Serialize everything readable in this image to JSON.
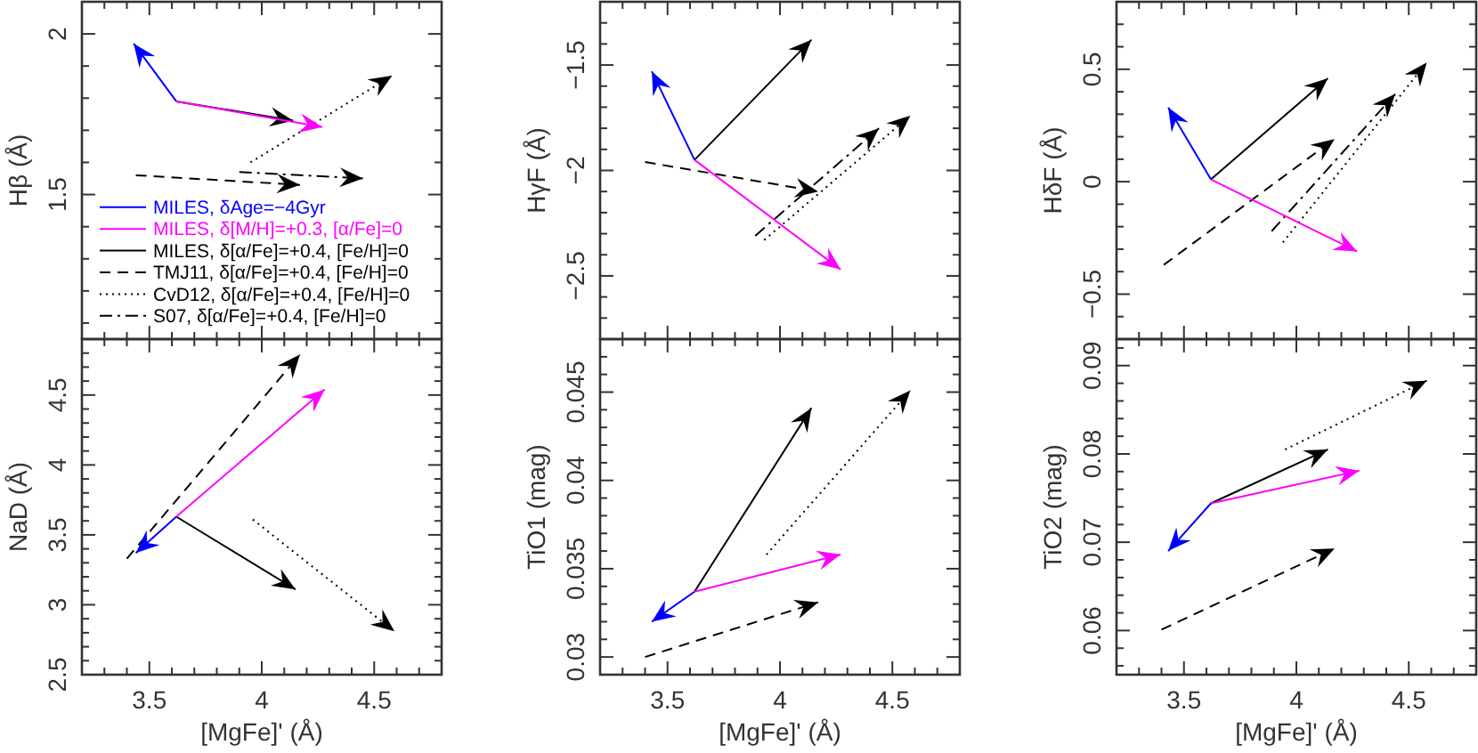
{
  "chart_data": [
    {
      "type": "line",
      "ylabel": "Hβ (Å)",
      "xlim": [
        3.2,
        4.8
      ],
      "ylim": [
        1.05,
        2.1
      ],
      "tick_labels": "y",
      "legend": "bottom left",
      "xticks": [
        {
          "value": 3.3,
          "label": null
        },
        {
          "value": 3.4,
          "label": null
        },
        3.5,
        {
          "value": 3.6,
          "label": null
        },
        {
          "value": 3.7,
          "label": null
        },
        {
          "value": 3.8,
          "label": null
        },
        {
          "value": 3.9,
          "label": null
        },
        4,
        {
          "value": 4.1,
          "label": null
        },
        {
          "value": 4.2,
          "label": null
        },
        {
          "value": 4.3,
          "label": null
        },
        {
          "value": 4.4,
          "label": null
        },
        4.5,
        {
          "value": 4.6,
          "label": null
        },
        {
          "value": 4.7,
          "label": null
        }
      ],
      "yticks": [
        {
          "value": 1.1,
          "label": null
        },
        {
          "value": 1.2,
          "label": null
        },
        {
          "value": 1.3,
          "label": null
        },
        {
          "value": 1.4,
          "label": null
        },
        1.5,
        {
          "value": 1.6,
          "label": null
        },
        {
          "value": 1.7,
          "label": null
        },
        {
          "value": 1.8,
          "label": null
        },
        {
          "value": 1.9,
          "label": null
        },
        2
      ],
      "series": [
        {
          "name": "MILES, δAge=−4Gyr",
          "color": "#0000ff",
          "line_style": "solid",
          "x": [
            3.62,
            3.43
          ],
          "values": [
            1.79,
            1.97
          ]
        },
        {
          "name": "MILES, δ[M/H]=+0.3, [α/Fe]=0",
          "color": "#ff00ff",
          "line_style": "solid",
          "x": [
            3.62,
            4.27
          ],
          "values": [
            1.79,
            1.71
          ]
        },
        {
          "name": "MILES, δ[α/Fe]=+0.4, [Fe/H]=0",
          "color": "#000000",
          "line_style": "solid",
          "x": [
            3.62,
            4.14
          ],
          "values": [
            1.79,
            1.73
          ]
        },
        {
          "name": "TMJ11, δ[α/Fe]=+0.4, [Fe/H]=0",
          "color": "#000000",
          "line_style": "dashed",
          "x": [
            3.44,
            4.17
          ],
          "values": [
            1.56,
            1.53
          ]
        },
        {
          "name": "CvD12, δ[α/Fe]=+0.4, [Fe/H]=0",
          "color": "#000000",
          "line_style": "dotted",
          "x": [
            3.95,
            4.58
          ],
          "values": [
            1.6,
            1.87
          ]
        },
        {
          "name": "S07, δ[α/Fe]=+0.4, [Fe/H]=0",
          "color": "#000000",
          "line_style": "dashdot",
          "x": [
            3.9,
            4.45
          ],
          "values": [
            1.57,
            1.55
          ]
        }
      ]
    },
    {
      "type": "line",
      "ylabel": "HγF (Å)",
      "xlim": [
        3.2,
        4.8
      ],
      "ylim": [
        -2.8,
        -1.2
      ],
      "tick_labels": "y",
      "xticks": [
        {
          "value": 3.3,
          "label": null
        },
        {
          "value": 3.4,
          "label": null
        },
        3.5,
        {
          "value": 3.6,
          "label": null
        },
        {
          "value": 3.7,
          "label": null
        },
        {
          "value": 3.8,
          "label": null
        },
        {
          "value": 3.9,
          "label": null
        },
        4,
        {
          "value": 4.1,
          "label": null
        },
        {
          "value": 4.2,
          "label": null
        },
        {
          "value": 4.3,
          "label": null
        },
        {
          "value": 4.4,
          "label": null
        },
        4.5,
        {
          "value": 4.6,
          "label": null
        },
        {
          "value": 4.7,
          "label": null
        }
      ],
      "yticks": [
        {
          "value": -2.7,
          "label": null
        },
        {
          "value": -2.6,
          "label": null
        },
        -2.5,
        {
          "value": -2.4,
          "label": null
        },
        {
          "value": -2.3,
          "label": null
        },
        {
          "value": -2.2,
          "label": null
        },
        {
          "value": -2.1,
          "label": null
        },
        -2,
        {
          "value": -1.9,
          "label": null
        },
        {
          "value": -1.8,
          "label": null
        },
        {
          "value": -1.7,
          "label": null
        },
        {
          "value": -1.6,
          "label": null
        },
        -1.5,
        {
          "value": -1.4,
          "label": null
        },
        {
          "value": -1.3,
          "label": null
        }
      ],
      "series": [
        {
          "color": "#0000ff",
          "line_style": "solid",
          "x": [
            3.62,
            3.43
          ],
          "values": [
            -1.95,
            -1.53
          ]
        },
        {
          "color": "#ff00ff",
          "line_style": "solid",
          "x": [
            3.62,
            4.27
          ],
          "values": [
            -1.95,
            -2.47
          ]
        },
        {
          "color": "#000000",
          "line_style": "solid",
          "x": [
            3.62,
            4.14
          ],
          "values": [
            -1.95,
            -1.38
          ]
        },
        {
          "color": "#000000",
          "line_style": "dashed",
          "x": [
            3.4,
            4.17
          ],
          "values": [
            -1.96,
            -2.1
          ]
        },
        {
          "color": "#000000",
          "line_style": "dotted",
          "x": [
            3.93,
            4.58
          ],
          "values": [
            -2.33,
            -1.74
          ]
        },
        {
          "color": "#000000",
          "line_style": "dashdot",
          "x": [
            3.89,
            4.44
          ],
          "values": [
            -2.31,
            -1.8
          ]
        }
      ]
    },
    {
      "type": "line",
      "ylabel": "HδF (Å)",
      "xlim": [
        3.2,
        4.8
      ],
      "ylim": [
        -0.7,
        0.8
      ],
      "tick_labels": "y",
      "xticks": [
        {
          "value": 3.3,
          "label": null
        },
        {
          "value": 3.4,
          "label": null
        },
        3.5,
        {
          "value": 3.6,
          "label": null
        },
        {
          "value": 3.7,
          "label": null
        },
        {
          "value": 3.8,
          "label": null
        },
        {
          "value": 3.9,
          "label": null
        },
        4,
        {
          "value": 4.1,
          "label": null
        },
        {
          "value": 4.2,
          "label": null
        },
        {
          "value": 4.3,
          "label": null
        },
        {
          "value": 4.4,
          "label": null
        },
        4.5,
        {
          "value": 4.6,
          "label": null
        },
        {
          "value": 4.7,
          "label": null
        }
      ],
      "yticks": [
        {
          "value": -0.6,
          "label": null
        },
        -0.5,
        {
          "value": -0.4,
          "label": null
        },
        {
          "value": -0.3,
          "label": null
        },
        {
          "value": -0.2,
          "label": null
        },
        {
          "value": -0.1,
          "label": null
        },
        0,
        {
          "value": 0.1,
          "label": null
        },
        {
          "value": 0.2,
          "label": null
        },
        {
          "value": 0.3,
          "label": null
        },
        {
          "value": 0.4,
          "label": null
        },
        0.5,
        {
          "value": 0.6,
          "label": null
        },
        {
          "value": 0.7,
          "label": null
        }
      ],
      "series": [
        {
          "color": "#0000ff",
          "line_style": "solid",
          "x": [
            3.62,
            3.43
          ],
          "values": [
            0.01,
            0.33
          ]
        },
        {
          "color": "#ff00ff",
          "line_style": "solid",
          "x": [
            3.62,
            4.27
          ],
          "values": [
            0.01,
            -0.31
          ]
        },
        {
          "color": "#000000",
          "line_style": "solid",
          "x": [
            3.62,
            4.14
          ],
          "values": [
            0.01,
            0.46
          ]
        },
        {
          "color": "#000000",
          "line_style": "dashed",
          "x": [
            3.41,
            4.17
          ],
          "values": [
            -0.37,
            0.19
          ]
        },
        {
          "color": "#000000",
          "line_style": "dotted",
          "x": [
            3.94,
            4.58
          ],
          "values": [
            -0.27,
            0.53
          ]
        },
        {
          "color": "#000000",
          "line_style": "dashdot",
          "x": [
            3.89,
            4.44
          ],
          "values": [
            -0.22,
            0.39
          ]
        }
      ]
    },
    {
      "type": "line",
      "xlabel": "[MgFe]' (Å)",
      "ylabel": "NaD (Å)",
      "xlim": [
        3.2,
        4.8
      ],
      "ylim": [
        2.5,
        4.9
      ],
      "xticks": [
        {
          "value": 3.3,
          "label": null
        },
        {
          "value": 3.4,
          "label": null
        },
        3.5,
        {
          "value": 3.6,
          "label": null
        },
        {
          "value": 3.7,
          "label": null
        },
        {
          "value": 3.8,
          "label": null
        },
        {
          "value": 3.9,
          "label": null
        },
        4,
        {
          "value": 4.1,
          "label": null
        },
        {
          "value": 4.2,
          "label": null
        },
        {
          "value": 4.3,
          "label": null
        },
        {
          "value": 4.4,
          "label": null
        },
        4.5,
        {
          "value": 4.6,
          "label": null
        },
        {
          "value": 4.7,
          "label": null
        }
      ],
      "yticks": [
        2.5,
        {
          "value": 2.6,
          "label": null
        },
        {
          "value": 2.7,
          "label": null
        },
        {
          "value": 2.8,
          "label": null
        },
        {
          "value": 2.9,
          "label": null
        },
        3,
        {
          "value": 3.1,
          "label": null
        },
        {
          "value": 3.2,
          "label": null
        },
        {
          "value": 3.3,
          "label": null
        },
        {
          "value": 3.4,
          "label": null
        },
        3.5,
        {
          "value": 3.6,
          "label": null
        },
        {
          "value": 3.7,
          "label": null
        },
        {
          "value": 3.8,
          "label": null
        },
        {
          "value": 3.9,
          "label": null
        },
        4,
        {
          "value": 4.1,
          "label": null
        },
        {
          "value": 4.2,
          "label": null
        },
        {
          "value": 4.3,
          "label": null
        },
        {
          "value": 4.4,
          "label": null
        },
        4.5,
        {
          "value": 4.6,
          "label": null
        },
        {
          "value": 4.7,
          "label": null
        },
        {
          "value": 4.8,
          "label": null
        }
      ],
      "series": [
        {
          "color": "#0000ff",
          "line_style": "solid",
          "x": [
            3.62,
            3.44
          ],
          "values": [
            3.63,
            3.37
          ]
        },
        {
          "color": "#ff00ff",
          "line_style": "solid",
          "x": [
            3.62,
            4.28
          ],
          "values": [
            3.63,
            4.54
          ]
        },
        {
          "color": "#000000",
          "line_style": "solid",
          "x": [
            3.62,
            4.15
          ],
          "values": [
            3.63,
            3.11
          ]
        },
        {
          "color": "#000000",
          "line_style": "dashed",
          "x": [
            3.4,
            4.17
          ],
          "values": [
            3.33,
            4.79
          ]
        },
        {
          "color": "#000000",
          "line_style": "dotted",
          "x": [
            3.96,
            4.59
          ],
          "values": [
            3.61,
            2.81
          ]
        }
      ]
    },
    {
      "type": "line",
      "xlabel": "[MgFe]' (Å)",
      "ylabel": "TiO1 (mag)",
      "xlim": [
        3.2,
        4.8
      ],
      "ylim": [
        0.029,
        0.048
      ],
      "xticks": [
        {
          "value": 3.3,
          "label": null
        },
        {
          "value": 3.4,
          "label": null
        },
        3.5,
        {
          "value": 3.6,
          "label": null
        },
        {
          "value": 3.7,
          "label": null
        },
        {
          "value": 3.8,
          "label": null
        },
        {
          "value": 3.9,
          "label": null
        },
        4,
        {
          "value": 4.1,
          "label": null
        },
        {
          "value": 4.2,
          "label": null
        },
        {
          "value": 4.3,
          "label": null
        },
        {
          "value": 4.4,
          "label": null
        },
        4.5,
        {
          "value": 4.6,
          "label": null
        },
        {
          "value": 4.7,
          "label": null
        }
      ],
      "yticks": [
        0.03,
        {
          "value": 0.031,
          "label": null
        },
        {
          "value": 0.032,
          "label": null
        },
        {
          "value": 0.033,
          "label": null
        },
        {
          "value": 0.034,
          "label": null
        },
        0.035,
        {
          "value": 0.036,
          "label": null
        },
        {
          "value": 0.037,
          "label": null
        },
        {
          "value": 0.038,
          "label": null
        },
        {
          "value": 0.039,
          "label": null
        },
        0.04,
        {
          "value": 0.041,
          "label": null
        },
        {
          "value": 0.042,
          "label": null
        },
        {
          "value": 0.043,
          "label": null
        },
        {
          "value": 0.044,
          "label": null
        },
        0.045,
        {
          "value": 0.046,
          "label": null
        },
        {
          "value": 0.047,
          "label": null
        }
      ],
      "series": [
        {
          "color": "#0000ff",
          "line_style": "solid",
          "x": [
            3.62,
            3.43
          ],
          "values": [
            0.0337,
            0.032
          ]
        },
        {
          "color": "#ff00ff",
          "line_style": "solid",
          "x": [
            3.62,
            4.27
          ],
          "values": [
            0.0337,
            0.0358
          ]
        },
        {
          "color": "#000000",
          "line_style": "solid",
          "x": [
            3.62,
            4.14
          ],
          "values": [
            0.0337,
            0.0441
          ]
        },
        {
          "color": "#000000",
          "line_style": "dashed",
          "x": [
            3.4,
            4.17
          ],
          "values": [
            0.03,
            0.0331
          ]
        },
        {
          "color": "#000000",
          "line_style": "dotted",
          "x": [
            3.94,
            4.58
          ],
          "values": [
            0.0358,
            0.0451
          ]
        }
      ]
    },
    {
      "type": "line",
      "xlabel": "[MgFe]' (Å)",
      "ylabel": "TiO2 (mag)",
      "xlim": [
        3.2,
        4.8
      ],
      "ylim": [
        0.055,
        0.093
      ],
      "xticks": [
        {
          "value": 3.3,
          "label": null
        },
        {
          "value": 3.4,
          "label": null
        },
        3.5,
        {
          "value": 3.6,
          "label": null
        },
        {
          "value": 3.7,
          "label": null
        },
        {
          "value": 3.8,
          "label": null
        },
        {
          "value": 3.9,
          "label": null
        },
        4,
        {
          "value": 4.1,
          "label": null
        },
        {
          "value": 4.2,
          "label": null
        },
        {
          "value": 4.3,
          "label": null
        },
        {
          "value": 4.4,
          "label": null
        },
        4.5,
        {
          "value": 4.6,
          "label": null
        },
        {
          "value": 4.7,
          "label": null
        }
      ],
      "yticks": [
        {
          "value": 0.056,
          "label": null
        },
        {
          "value": 0.058,
          "label": null
        },
        0.06,
        {
          "value": 0.062,
          "label": null
        },
        {
          "value": 0.064,
          "label": null
        },
        {
          "value": 0.066,
          "label": null
        },
        {
          "value": 0.068,
          "label": null
        },
        0.07,
        {
          "value": 0.072,
          "label": null
        },
        {
          "value": 0.074,
          "label": null
        },
        {
          "value": 0.076,
          "label": null
        },
        {
          "value": 0.078,
          "label": null
        },
        0.08,
        {
          "value": 0.082,
          "label": null
        },
        {
          "value": 0.084,
          "label": null
        },
        {
          "value": 0.086,
          "label": null
        },
        {
          "value": 0.088,
          "label": null
        },
        0.09,
        {
          "value": 0.092,
          "label": null
        }
      ],
      "series": [
        {
          "color": "#0000ff",
          "line_style": "solid",
          "x": [
            3.62,
            3.43
          ],
          "values": [
            0.0744,
            0.069
          ]
        },
        {
          "color": "#ff00ff",
          "line_style": "solid",
          "x": [
            3.62,
            4.28
          ],
          "values": [
            0.0744,
            0.0781
          ]
        },
        {
          "color": "#000000",
          "line_style": "solid",
          "x": [
            3.62,
            4.14
          ],
          "values": [
            0.0744,
            0.0805
          ]
        },
        {
          "color": "#000000",
          "line_style": "dashed",
          "x": [
            3.4,
            4.17
          ],
          "values": [
            0.0601,
            0.0693
          ]
        },
        {
          "color": "#000000",
          "line_style": "dotted",
          "x": [
            3.95,
            4.58
          ],
          "values": [
            0.0805,
            0.0883
          ]
        }
      ]
    }
  ]
}
